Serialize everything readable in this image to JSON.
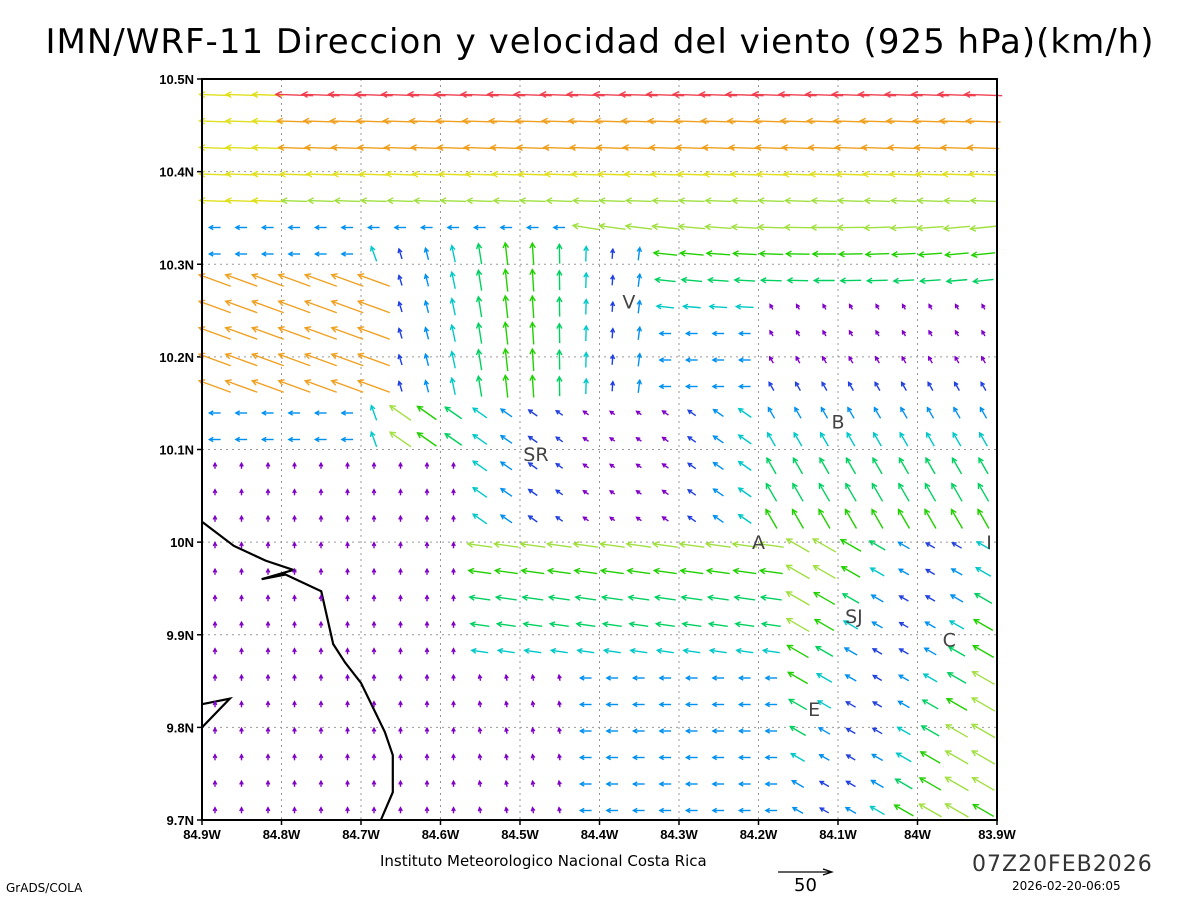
{
  "title": "IMN/WRF-11 Direccion y velocidad del viento (925 hPa)(km/h)",
  "footer": {
    "institute": "Instituto Meteorologico Nacional Costa Rica",
    "reference_vector_value": "50",
    "valid_time": "07Z20FEB2026",
    "generated": "2026-02-20-06:05",
    "software": "GrADS/COLA"
  },
  "map": {
    "lon_range": [
      -84.9,
      -83.9
    ],
    "lat_range": [
      9.7,
      10.5
    ],
    "x_ticks": [
      "84.9W",
      "84.8W",
      "84.7W",
      "84.6W",
      "84.5W",
      "84.4W",
      "84.3W",
      "84.2W",
      "84.1W",
      "84W",
      "83.9W"
    ],
    "y_ticks": [
      "10.5N",
      "10.4N",
      "10.3N",
      "10.2N",
      "10.1N",
      "10N",
      "9.9N",
      "9.8N",
      "9.7N"
    ],
    "grid": true,
    "places": [
      {
        "label": "V",
        "lon": -84.363,
        "lat": 10.26
      },
      {
        "label": "B",
        "lon": -84.1,
        "lat": 10.13
      },
      {
        "label": "SR",
        "lon": -84.48,
        "lat": 10.095
      },
      {
        "label": "A",
        "lon": -84.2,
        "lat": 10.0
      },
      {
        "label": "I",
        "lon": -83.91,
        "lat": 10.0
      },
      {
        "label": "SJ",
        "lon": -84.08,
        "lat": 9.92
      },
      {
        "label": "C",
        "lon": -83.96,
        "lat": 9.895
      },
      {
        "label": "E",
        "lon": -84.13,
        "lat": 9.82
      }
    ],
    "coastline": [
      [
        [
          -84.9,
          10.022
        ],
        [
          -84.86,
          9.996
        ],
        [
          -84.82,
          9.98
        ],
        [
          -84.785,
          9.97
        ],
        [
          -84.825,
          9.96
        ],
        [
          -84.795,
          9.965
        ],
        [
          -84.75,
          9.947
        ],
        [
          -84.735,
          9.89
        ],
        [
          -84.72,
          9.87
        ],
        [
          -84.7,
          9.848
        ],
        [
          -84.67,
          9.795
        ],
        [
          -84.66,
          9.77
        ],
        [
          -84.66,
          9.73
        ],
        [
          -84.675,
          9.7
        ]
      ],
      [
        [
          -84.9,
          9.825
        ],
        [
          -84.865,
          9.831
        ],
        [
          -84.9,
          9.8
        ]
      ]
    ]
  },
  "wind_colors": [
    "#8000c8",
    "#2040e0",
    "#0090f0",
    "#00c8c8",
    "#00d060",
    "#20d000",
    "#a0e040",
    "#e0e020",
    "#f0a020",
    "#f04050",
    "#e0007a"
  ]
}
